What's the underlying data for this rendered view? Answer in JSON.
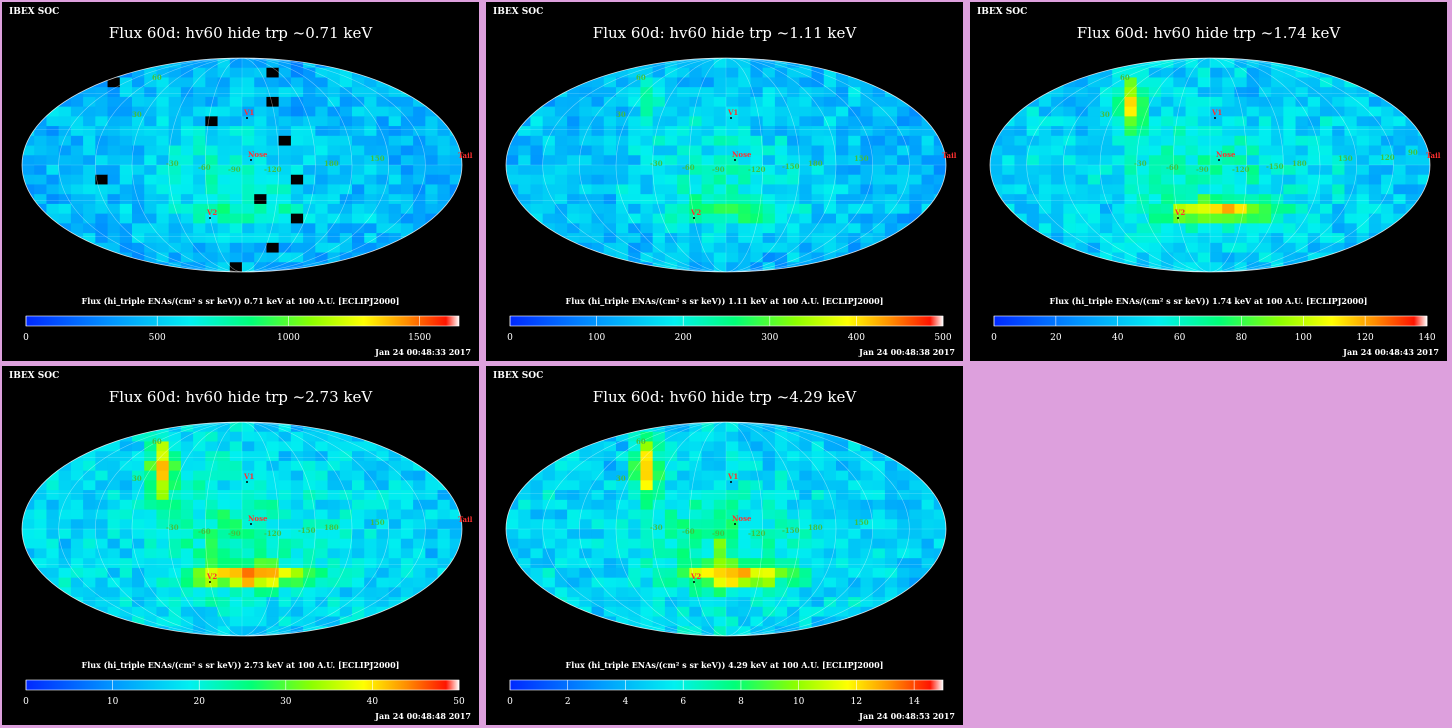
{
  "chart_data": [
    {
      "type": "heatmap",
      "soc_label": "IBEX SOC",
      "title": "Flux   60d: hv60 hide trp ~0.71 keV",
      "colorbar_label": "Flux (hi_triple ENAs/(cm² s sr keV))  0.71 keV at 100 A.U. [ECLIPJ2000]",
      "colorbar_ticks": [
        "0",
        "500",
        "1000",
        "1500"
      ],
      "colorbar_range": [
        0,
        1650
      ],
      "timestamp": "Jan 24 00:48:33 2017",
      "map_labels": [
        "V1",
        "V2",
        "Nose",
        "Tail",
        "-90",
        "-60",
        "-120",
        "-30",
        "60",
        "30",
        "180",
        "150"
      ],
      "hotspot_scale": 0.25
    },
    {
      "type": "heatmap",
      "soc_label": "IBEX SOC",
      "title": "Flux   60d: hv60 hide trp ~1.11 keV",
      "colorbar_label": "Flux (hi_triple ENAs/(cm² s sr keV))  1.11 keV at 100 A.U. [ECLIPJ2000]",
      "colorbar_ticks": [
        "0",
        "100",
        "200",
        "300",
        "400",
        "500"
      ],
      "colorbar_range": [
        0,
        500
      ],
      "timestamp": "Jan 24 00:48:38 2017",
      "map_labels": [
        "V1",
        "V2",
        "Nose",
        "Tail",
        "-90",
        "-60",
        "-120",
        "-30",
        "-150",
        "60",
        "30",
        "180",
        "150"
      ],
      "hotspot_scale": 0.35
    },
    {
      "type": "heatmap",
      "soc_label": "IBEX SOC",
      "title": "Flux   60d: hv60 hide trp ~1.74 keV",
      "colorbar_label": "Flux (hi_triple ENAs/(cm² s sr keV))  1.74 keV at 100 A.U. [ECLIPJ2000]",
      "colorbar_ticks": [
        "0",
        "20",
        "40",
        "60",
        "80",
        "100",
        "120",
        "140"
      ],
      "colorbar_range": [
        0,
        140
      ],
      "timestamp": "Jan 24 00:48:43 2017",
      "map_labels": [
        "V1",
        "V2",
        "Nose",
        "Tail",
        "-90",
        "-60",
        "-120",
        "-30",
        "-150",
        "60",
        "30",
        "180",
        "150",
        "120",
        "90"
      ],
      "hotspot_scale": 0.8
    },
    {
      "type": "heatmap",
      "soc_label": "IBEX SOC",
      "title": "Flux   60d: hv60 hide trp ~2.73 keV",
      "colorbar_label": "Flux (hi_triple ENAs/(cm² s sr keV))  2.73 keV at 100 A.U. [ECLIPJ2000]",
      "colorbar_ticks": [
        "0",
        "10",
        "20",
        "30",
        "40",
        "50"
      ],
      "colorbar_range": [
        0,
        50
      ],
      "timestamp": "Jan 24 00:48:48 2017",
      "map_labels": [
        "V1",
        "V2",
        "Nose",
        "Tail",
        "-90",
        "-60",
        "-120",
        "-30",
        "-150",
        "60",
        "30",
        "180",
        "150"
      ],
      "hotspot_scale": 1.0
    },
    {
      "type": "heatmap",
      "soc_label": "IBEX SOC",
      "title": "Flux   60d: hv60 hide trp ~4.29 keV",
      "colorbar_label": "Flux (hi_triple ENAs/(cm² s sr keV))  4.29 keV at 100 A.U. [ECLIPJ2000]",
      "colorbar_ticks": [
        "0",
        "2",
        "4",
        "6",
        "8",
        "10",
        "12",
        "14"
      ],
      "colorbar_range": [
        0,
        15
      ],
      "timestamp": "Jan 24 00:48:53 2017",
      "map_labels": [
        "V1",
        "V2",
        "Nose",
        "-90",
        "-60",
        "-120",
        "-30",
        "-150",
        "60",
        "30",
        "180",
        "150"
      ],
      "hotspot_scale": 0.9
    }
  ],
  "colors": {
    "background": "#dda0dd",
    "panel": "#000000",
    "label_red": "#ff3030",
    "label_green": "#40c040"
  }
}
